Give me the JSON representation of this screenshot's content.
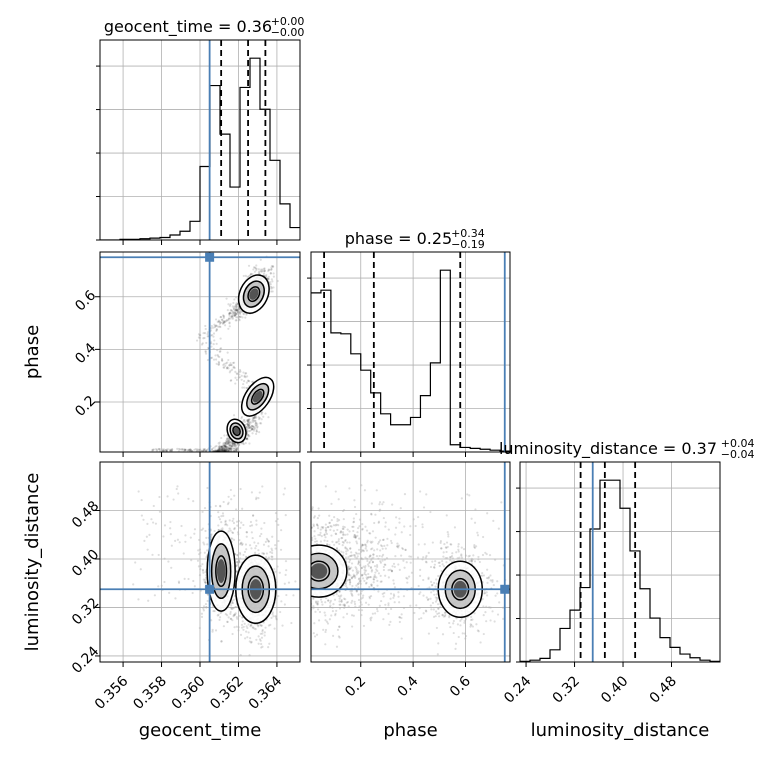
{
  "chart_data": {
    "type": "corner",
    "parameters": [
      {
        "name": "geocent_time",
        "range": [
          0.3548,
          0.3652
        ],
        "ticks": [
          0.356,
          0.358,
          0.36,
          0.362,
          0.364
        ],
        "tick_labels": [
          "0.356",
          "0.358",
          "0.360",
          "0.362",
          "0.364"
        ],
        "truth": 0.3605,
        "quantiles": [
          0.3611,
          0.3625,
          0.3634
        ]
      },
      {
        "name": "phase",
        "range": [
          0.01,
          0.77
        ],
        "ticks": [
          0.2,
          0.4,
          0.6
        ],
        "tick_labels": [
          "0.2",
          "0.4",
          "0.6"
        ],
        "truth": 0.75,
        "quantiles": [
          0.06,
          0.25,
          0.58
        ]
      },
      {
        "name": "luminosity_distance",
        "range": [
          0.23,
          0.56
        ],
        "ticks": [
          0.24,
          0.32,
          0.4,
          0.48
        ],
        "tick_labels": [
          "0.24",
          "0.32",
          "0.40",
          "0.48"
        ],
        "truth": 0.35,
        "quantiles": [
          0.33,
          0.37,
          0.42
        ]
      }
    ],
    "titles": [
      {
        "main": "geocent_time = 0.36",
        "plus": "+0.00",
        "minus": "−0.00"
      },
      {
        "main": "phase = 0.25",
        "plus": "+0.34",
        "minus": "−0.19"
      },
      {
        "main": "luminosity_distance = 0.37",
        "plus": "+0.04",
        "minus": "−0.04"
      }
    ],
    "histograms": [
      {
        "param": "geocent_time",
        "bin_edges_start": 0.3548,
        "bin_width": 0.00052,
        "counts": [
          0,
          0,
          1,
          1,
          2,
          3,
          4,
          8,
          14,
          30,
          118,
          248,
          170,
          85,
          245,
          292,
          210,
          128,
          58,
          20
        ]
      },
      {
        "param": "phase",
        "bin_edges_start": 0.01,
        "bin_width": 0.038,
        "counts": [
          175,
          178,
          131,
          130,
          108,
          90,
          65,
          42,
          30,
          30,
          38,
          62,
          98,
          200,
          8,
          5,
          4,
          3,
          2,
          1
        ]
      },
      {
        "param": "luminosity_distance",
        "bin_edges_start": 0.23,
        "bin_width": 0.0165,
        "counts": [
          1,
          3,
          6,
          20,
          55,
          85,
          122,
          218,
          298,
          298,
          252,
          182,
          120,
          72,
          40,
          24,
          13,
          7,
          3,
          1
        ]
      }
    ],
    "joint_modes": [
      {
        "x": "geocent_time",
        "y": "phase",
        "points": [
          [
            0.3619,
            0.09
          ],
          [
            0.363,
            0.22
          ],
          [
            0.3628,
            0.61
          ]
        ]
      },
      {
        "x": "geocent_time",
        "y": "luminosity_distance",
        "points": [
          [
            0.3611,
            0.38
          ],
          [
            0.3629,
            0.35
          ]
        ]
      },
      {
        "x": "phase",
        "y": "luminosity_distance",
        "points": [
          [
            0.04,
            0.38
          ],
          [
            0.58,
            0.35
          ]
        ]
      }
    ],
    "truth_color": "#4a7fb5",
    "contour_color": "#000000",
    "grid": true
  }
}
